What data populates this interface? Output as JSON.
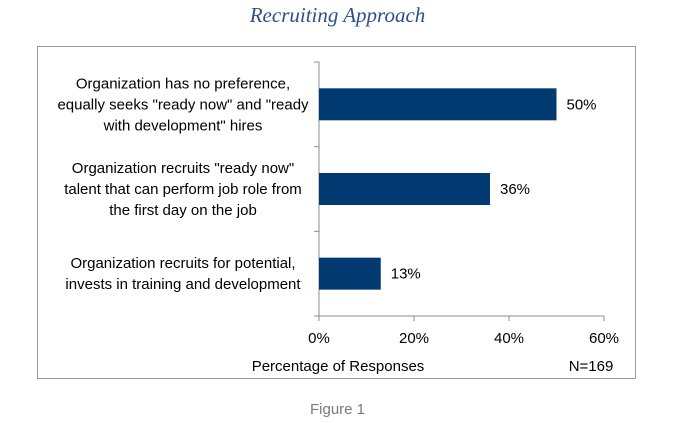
{
  "chart_data": {
    "type": "bar",
    "orientation": "horizontal",
    "title": "Recruiting Approach",
    "xlabel": "Percentage of Responses",
    "note": "N=169",
    "xlim": [
      0,
      60
    ],
    "xticks": [
      "0%",
      "20%",
      "40%",
      "60%"
    ],
    "tick_values": [
      0,
      20,
      40,
      60
    ],
    "grid": false,
    "bar_color": "#003a70",
    "categories": [
      [
        "Organization has no preference,",
        "equally seeks \"ready now\" and \"ready",
        "with development\" hires"
      ],
      [
        "Organization recruits \"ready now\"",
        "talent that can perform job role from",
        "the first day on the job"
      ],
      [
        "Organization recruits for potential,",
        "invests in training and development"
      ]
    ],
    "values": [
      50,
      36,
      13
    ],
    "data_labels": [
      "50%",
      "36%",
      "13%"
    ]
  },
  "caption": "Figure 1"
}
